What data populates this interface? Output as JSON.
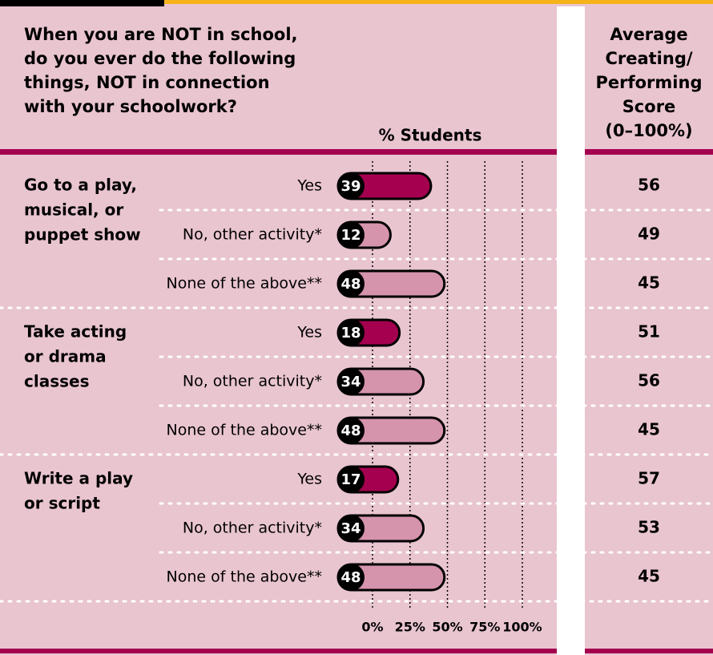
{
  "chart_data": {
    "type": "bar",
    "title_lines": [
      "When you are NOT in school,",
      "do you ever do the following",
      "things, NOT in connection",
      "with your schoolwork?"
    ],
    "x_label": "% Students",
    "score_header_lines": [
      "Average",
      "Creating/",
      "Performing",
      "Score",
      "(0–100%)"
    ],
    "groups": [
      {
        "label_lines": [
          "Go to a play,",
          "musical, or",
          "puppet show"
        ],
        "categories": [
          "Yes",
          "No, other activity*",
          "None of the above**"
        ],
        "values": [
          39,
          12,
          48
        ],
        "scores": [
          56,
          49,
          45
        ]
      },
      {
        "label_lines": [
          "Take acting",
          "or drama",
          "classes"
        ],
        "categories": [
          "Yes",
          "No, other activity*",
          "None of the above**"
        ],
        "values": [
          18,
          34,
          48
        ],
        "scores": [
          51,
          56,
          45
        ]
      },
      {
        "label_lines": [
          "Write a play",
          "or script"
        ],
        "categories": [
          "Yes",
          "No, other activity*",
          "None of the above**"
        ],
        "values": [
          17,
          34,
          48
        ],
        "scores": [
          57,
          53,
          45
        ]
      }
    ],
    "xlim": [
      0,
      100
    ],
    "xticks": [
      {
        "value": 0,
        "label": "0%"
      },
      {
        "value": 25,
        "label": "25%"
      },
      {
        "value": 50,
        "label": "50%"
      },
      {
        "value": 75,
        "label": "75%"
      },
      {
        "value": 100,
        "label": "100%"
      }
    ],
    "highlight_color": "#a5004f",
    "color": "#d593ac"
  }
}
